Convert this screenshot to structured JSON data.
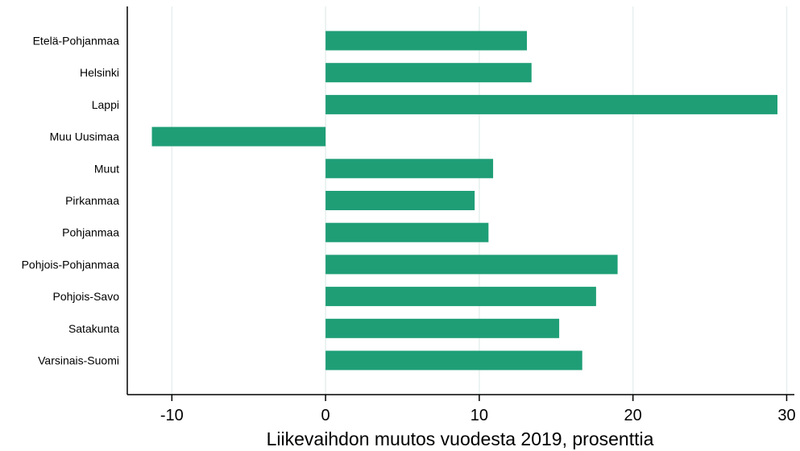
{
  "chart_data": {
    "type": "bar",
    "orientation": "horizontal",
    "categories": [
      "Etelä-Pohjanmaa",
      "Helsinki",
      "Lappi",
      "Muu Uusimaa",
      "Muut",
      "Pirkanmaa",
      "Pohjanmaa",
      "Pohjois-Pohjanmaa",
      "Pohjois-Savo",
      "Satakunta",
      "Varsinais-Suomi"
    ],
    "values": [
      13.1,
      13.4,
      29.4,
      -11.3,
      10.9,
      9.7,
      10.6,
      19.0,
      17.6,
      15.2,
      16.7
    ],
    "xlabel": "Liikevaihdon muutos vuodesta 2019, prosenttia",
    "ylabel": "",
    "xlim": [
      -12.9,
      30.5
    ],
    "xticks": [
      -10,
      0,
      10,
      20,
      30
    ],
    "xtick_labels": [
      "-10",
      "0",
      "10",
      "20",
      "30"
    ],
    "grid": true,
    "bar_color": "#1f9e76",
    "grid_color": "#e6efee"
  }
}
